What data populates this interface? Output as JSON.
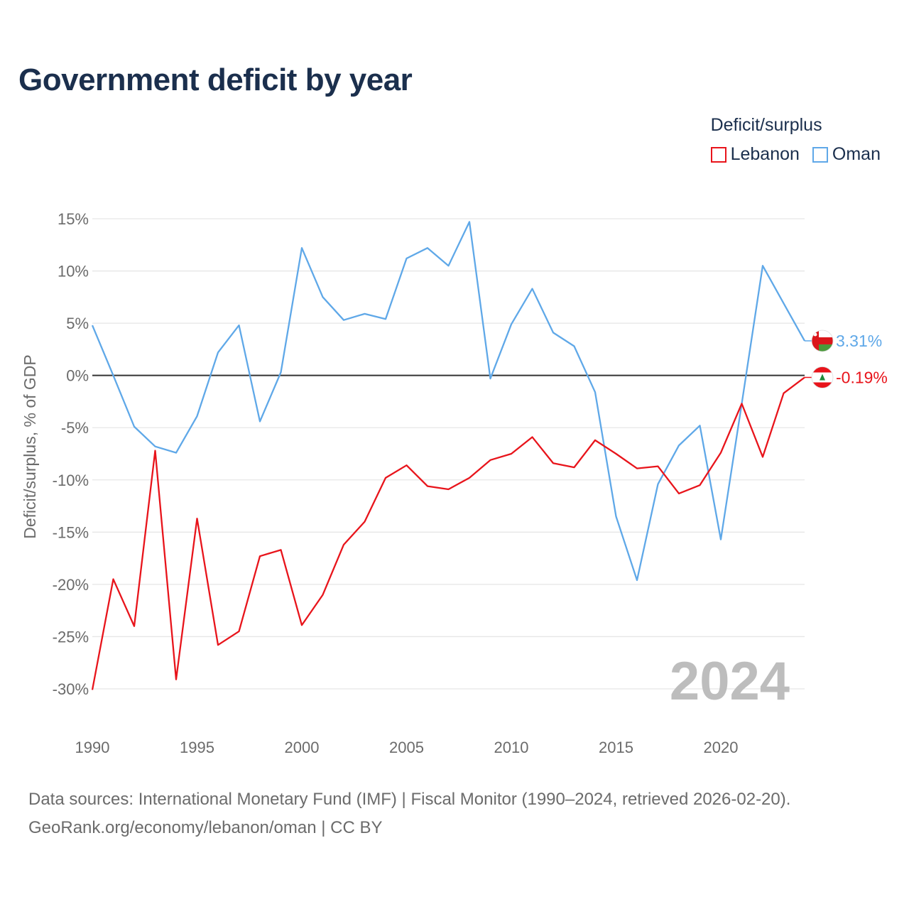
{
  "title": "Government deficit by year",
  "legend": {
    "title": "Deficit/surplus",
    "items": [
      {
        "name": "Lebanon",
        "color": "#e8141b"
      },
      {
        "name": "Oman",
        "color": "#5fa8e8"
      }
    ]
  },
  "footer": {
    "line1": "Data sources: International Monetary Fund (IMF) | Fiscal Monitor (1990–2024, retrieved 2026-02-20).",
    "line2": "GeoRank.org/economy/lebanon/oman | CC BY"
  },
  "chart_data": {
    "type": "line",
    "title": "Government deficit by year",
    "ylabel": "Deficit/surplus, % of GDP",
    "xlabel": "",
    "xlim": [
      1990,
      2024
    ],
    "ylim": [
      -30,
      15
    ],
    "yticks": [
      15,
      10,
      5,
      0,
      -5,
      -10,
      -15,
      -20,
      -25,
      -30
    ],
    "ytick_labels": [
      "15%",
      "10%",
      "5%",
      "0%",
      "-5%",
      "-10%",
      "-15%",
      "-20%",
      "-25%",
      "-30%"
    ],
    "xticks": [
      1990,
      1995,
      2000,
      2005,
      2010,
      2015,
      2020
    ],
    "xtick_labels": [
      "1990",
      "1995",
      "2000",
      "2005",
      "2010",
      "2015",
      "2020"
    ],
    "watermark": "2024",
    "x": [
      1990,
      1991,
      1992,
      1993,
      1994,
      1995,
      1996,
      1997,
      1998,
      1999,
      2000,
      2001,
      2002,
      2003,
      2004,
      2005,
      2006,
      2007,
      2008,
      2009,
      2010,
      2011,
      2012,
      2013,
      2014,
      2015,
      2016,
      2017,
      2018,
      2019,
      2020,
      2021,
      2022,
      2023,
      2024
    ],
    "series": [
      {
        "name": "Oman",
        "color": "#5fa8e8",
        "end_label": "3.31%",
        "flag": "oman-flag-icon",
        "values": [
          4.8,
          0.0,
          -4.9,
          -6.8,
          -7.4,
          -3.9,
          2.2,
          4.8,
          -4.4,
          0.3,
          12.2,
          7.5,
          5.3,
          5.9,
          5.4,
          11.2,
          12.2,
          10.5,
          14.7,
          -0.3,
          4.9,
          8.3,
          4.1,
          2.8,
          -1.6,
          -13.5,
          -19.6,
          -10.4,
          -6.7,
          -4.8,
          -15.7,
          -2.7,
          10.5,
          6.9,
          3.31
        ]
      },
      {
        "name": "Lebanon",
        "color": "#e8141b",
        "end_label": "-0.19%",
        "flag": "lebanon-flag-icon",
        "values": [
          -30.1,
          -19.5,
          -24.0,
          -7.2,
          -29.1,
          -13.7,
          -25.8,
          -24.5,
          -17.3,
          -16.7,
          -23.9,
          -21.0,
          -16.2,
          -14.0,
          -9.8,
          -8.6,
          -10.6,
          -10.9,
          -9.8,
          -8.1,
          -7.5,
          -5.9,
          -8.4,
          -8.8,
          -6.2,
          -7.5,
          -8.9,
          -8.7,
          -11.3,
          -10.5,
          -7.4,
          -2.7,
          -7.8,
          -1.7,
          -0.19
        ]
      }
    ]
  }
}
